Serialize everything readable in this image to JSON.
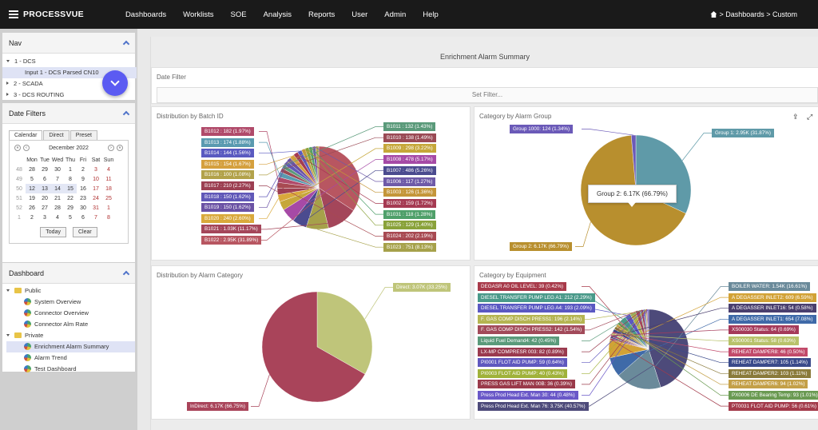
{
  "topbar": {
    "brand": "PROCESSVUE",
    "menu": [
      "Dashboards",
      "Worklists",
      "SOE",
      "Analysis",
      "Reports",
      "User",
      "Admin",
      "Help"
    ],
    "breadcrumb": "> Dashboards > Custom"
  },
  "nav": {
    "title": "Nav",
    "items": [
      "1 - DCS",
      "Input 1 - DCS Parsed CN10",
      "2 - SCADA",
      "3 - DCS ROUTING"
    ]
  },
  "date_filters": {
    "title": "Date Filters",
    "tabs": [
      "Calendar",
      "Direct",
      "Preset"
    ],
    "month": "December 2022",
    "weekdays": [
      "Mon",
      "Tue",
      "Wed",
      "Thu",
      "Fri",
      "Sat",
      "Sun"
    ],
    "weeks": [
      {
        "wk": "48",
        "days": [
          "28",
          "29",
          "30",
          "1",
          "2",
          "3",
          "4"
        ]
      },
      {
        "wk": "49",
        "days": [
          "5",
          "6",
          "7",
          "8",
          "9",
          "10",
          "11"
        ]
      },
      {
        "wk": "50",
        "days": [
          "12",
          "13",
          "14",
          "15",
          "16",
          "17",
          "18"
        ]
      },
      {
        "wk": "51",
        "days": [
          "19",
          "20",
          "21",
          "22",
          "23",
          "24",
          "25"
        ]
      },
      {
        "wk": "52",
        "days": [
          "26",
          "27",
          "28",
          "29",
          "30",
          "31",
          "1"
        ]
      },
      {
        "wk": "1",
        "days": [
          "2",
          "3",
          "4",
          "5",
          "6",
          "7",
          "8"
        ]
      }
    ],
    "today_label": "Today",
    "clear_label": "Clear"
  },
  "dashboard": {
    "title": "Dashboard",
    "public_label": "Public",
    "public_items": [
      "System Overview",
      "Connector Overview",
      "Connector Alm Rate"
    ],
    "private_label": "Private",
    "private_items": [
      "Enrichment Alarm Summary",
      "Alarm Trend",
      "Test Dashboard"
    ]
  },
  "main": {
    "page_title": "Enrichment Alarm Summary",
    "date_filter_title": "Date Filter",
    "set_filter_label": "Set Filter..."
  },
  "colors": {
    "batch_palette": [
      "#c24b5a",
      "#e0a63a",
      "#5b58c8",
      "#7c9a3c",
      "#b33e9c",
      "#5aa0b5",
      "#8a7a3a",
      "#5fa877",
      "#6f5a9c",
      "#c0883a",
      "#3f9aa3",
      "#9a3f5a"
    ]
  },
  "chart_data": [
    {
      "type": "pie",
      "title": "Distribution by Batch ID",
      "slices": [
        {
          "label": "B1022 : 2.95K (31.89%)",
          "value": 2950,
          "color": "#b85661"
        },
        {
          "label": "B1021 : 1.03K (11.17%)",
          "value": 1030,
          "color": "#a4465a"
        },
        {
          "label": "B1023 : 751 (8.13%)",
          "value": 751,
          "color": "#a6a14a"
        },
        {
          "label": "B1007 : 486 (5.26%)",
          "value": 486,
          "color": "#4b4b8f"
        },
        {
          "label": "B1008 : 478 (5.17%)",
          "value": 478,
          "color": "#a64aa6"
        },
        {
          "label": "B1009 : 298 (3.22%)",
          "value": 298,
          "color": "#c6a73a"
        },
        {
          "label": "B1020 : 240 (2.60%)",
          "value": 240,
          "color": "#d9a93b"
        },
        {
          "label": "B1017 : 210 (2.27%)",
          "value": 210,
          "color": "#9c3f52"
        },
        {
          "label": "B1024 : 202 (2.19%)",
          "value": 202,
          "color": "#a84a52"
        },
        {
          "label": "B1012 : 182 (1.97%)",
          "value": 182,
          "color": "#b04a6a"
        },
        {
          "label": "B1013 : 174 (1.88%)",
          "value": 174,
          "color": "#5a9ab0"
        },
        {
          "label": "B1010 : 138 (1.49%)",
          "value": 138,
          "color": "#9a4a55"
        },
        {
          "label": "B1011 : 132 (1.43%)",
          "value": 132,
          "color": "#5a9a7a"
        },
        {
          "label": "B1018 : 150 (1.62%)",
          "value": 150,
          "color": "#6058b8"
        },
        {
          "label": "B1019 : 150 (1.62%)",
          "value": 150,
          "color": "#6b52a4"
        },
        {
          "label": "B1015 : 154 (1.67%)",
          "value": 154,
          "color": "#d5a03e"
        },
        {
          "label": "B1002 : 159 (1.72%)",
          "value": 159,
          "color": "#a53a52"
        },
        {
          "label": "B1014 : 144 (1.56%)",
          "value": 144,
          "color": "#5a5ac0"
        },
        {
          "label": "B1003 : 126 (1.36%)",
          "value": 126,
          "color": "#c4963a"
        },
        {
          "label": "B1025 : 129 (1.40%)",
          "value": 129,
          "color": "#8aa23a"
        },
        {
          "label": "B1031 : 118 (1.28%)",
          "value": 118,
          "color": "#4fa06a"
        },
        {
          "label": "B1006 : 117 (1.27%)",
          "value": 117,
          "color": "#6e5aa8"
        },
        {
          "label": "B1016 : 100 (1.08%)",
          "value": 100,
          "color": "#b2a24a"
        }
      ]
    },
    {
      "type": "pie",
      "title": "Category by Alarm Group",
      "slices": [
        {
          "label": "Group 1: 2.95K (31.87%)",
          "value": 2950,
          "color": "#5f9aa8"
        },
        {
          "label": "Group 2: 6.17K (66.79%)",
          "value": 6170,
          "color": "#b88f2e"
        },
        {
          "label": "Group 1000: 124 (1.34%)",
          "value": 124,
          "color": "#6b5ab8"
        }
      ],
      "tooltip": "Group 2: 6.17K (66.79%)"
    },
    {
      "type": "pie",
      "title": "Distribution by Alarm Category",
      "slices": [
        {
          "label": "Direct: 3.07K (33.25%)",
          "value": 3070,
          "color": "#bfc57a"
        },
        {
          "label": "InDirect: 6.17K (66.75%)",
          "value": 6170,
          "color": "#a9445a"
        }
      ]
    },
    {
      "type": "pie",
      "title": "Category by Equipment",
      "slices": [
        {
          "label": "Press Prod Head Ext. Man 76: 3.75K (40.57%)",
          "value": 3750,
          "color": "#4d4a7a"
        },
        {
          "label": "BOILER WATER: 1.54K (16.61%)",
          "value": 1540,
          "color": "#6a8a9a"
        },
        {
          "label": "A DEGASSER INLET1: 654 (7.08%)",
          "value": 654,
          "color": "#3f6aa8"
        },
        {
          "label": "A DEGASSER INLET2: 609 (6.59%)",
          "value": 609,
          "color": "#d2a236"
        },
        {
          "label": "PT0031 FLOT AID PUMP: 56 (0.61%)",
          "value": 56,
          "color": "#a33a4a"
        },
        {
          "label": "A DEGASSER INLET16: 54 (0.58%)",
          "value": 54,
          "color": "#4a3f6e"
        },
        {
          "label": "XS00030 Status: 64 (0.69%)",
          "value": 64,
          "color": "#a53a5a"
        },
        {
          "label": "XS00001 Status: 58 (0.63%)",
          "value": 58,
          "color": "#b8c26a"
        },
        {
          "label": "REHEAT DAMPER8: 46 (0.50%)",
          "value": 46,
          "color": "#c24a6a"
        },
        {
          "label": "REHEAT DAMPER7: 105 (1.14%)",
          "value": 105,
          "color": "#3a4a8a"
        },
        {
          "label": "REHEAT DAMPER2: 103 (1.11%)",
          "value": 103,
          "color": "#8a7a3a"
        },
        {
          "label": "REHEAT DAMPER6: 94 (1.02%)",
          "value": 94,
          "color": "#c4a048"
        },
        {
          "label": "PX0006 DE Bearing Temp: 93 (1.01%)",
          "value": 93,
          "color": "#6a9a52"
        },
        {
          "label": "DEGASR A0 OIL LEVEL: 39 (0.42%)",
          "value": 39,
          "color": "#a83a4a"
        },
        {
          "label": "DIESEL TRANSFER PUMP LEG A1: 212 (2.29%)",
          "value": 212,
          "color": "#4a9a8a"
        },
        {
          "label": "DIESEL TRANSFER PUMP LEG A4: 193 (2.09%)",
          "value": 193,
          "color": "#5a58c2"
        },
        {
          "label": "F. GAS COMP DISCH PRESS1: 196 (2.14%)",
          "value": 196,
          "color": "#b5b552"
        },
        {
          "label": "F. GAS COMP DISCH PRESS2: 142 (1.54%)",
          "value": 142,
          "color": "#a24a5a"
        },
        {
          "label": "Liquid Fuel Demand4: 42 (0.45%)",
          "value": 42,
          "color": "#5a9a7a"
        },
        {
          "label": "LX-MP COMPRESR 003: 82 (0.89%)",
          "value": 82,
          "color": "#9a3a4e"
        },
        {
          "label": "PI0001 FLOT AID PUMP: 59 (0.64%)",
          "value": 59,
          "color": "#5f58bf"
        },
        {
          "label": "PI0003 FLOT AID PUMP: 40 (0.43%)",
          "value": 40,
          "color": "#a0b23a"
        },
        {
          "label": "PRESS GAS LIFT MAN 00B: 36 (0.39%)",
          "value": 36,
          "color": "#9a3a4a"
        },
        {
          "label": "Press Prod Head Ext. Man 30: 44 (0.48%)",
          "value": 44,
          "color": "#6a58c8"
        }
      ]
    }
  ]
}
